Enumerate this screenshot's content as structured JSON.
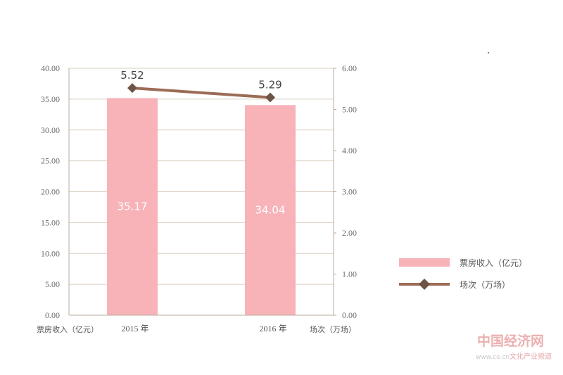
{
  "chart_data": {
    "type": "bar+line",
    "categories": [
      "2015 年",
      "2016 年"
    ],
    "bar_series": {
      "name": "票房收入（亿元）",
      "values": [
        35.17,
        34.04
      ],
      "color": "#f7b3b8",
      "labels": [
        "35.17",
        "34.04"
      ]
    },
    "line_series": {
      "name": "场次（万场）",
      "values": [
        5.52,
        5.29
      ],
      "color": "#9c6c56",
      "marker_color": "#6e5447",
      "labels": [
        "5.52",
        "5.29"
      ]
    },
    "left_axis": {
      "title": "票房收入（亿元）",
      "range": [
        0,
        40
      ],
      "ticks": [
        "0.00",
        "5.00",
        "10.00",
        "15.00",
        "20.00",
        "25.00",
        "30.00",
        "35.00",
        "40.00"
      ]
    },
    "right_axis": {
      "title": "场次（万场）",
      "range": [
        0,
        6
      ],
      "ticks": [
        "0.00",
        "1.00",
        "2.00",
        "3.00",
        "4.00",
        "5.00",
        "6.00"
      ]
    },
    "grid": true,
    "gridline_color": "#d9cfc0",
    "legend_position": "right"
  },
  "watermark": {
    "logo": "中国经济网",
    "url": "www.ce.cn",
    "channel": "文化产业频道"
  }
}
